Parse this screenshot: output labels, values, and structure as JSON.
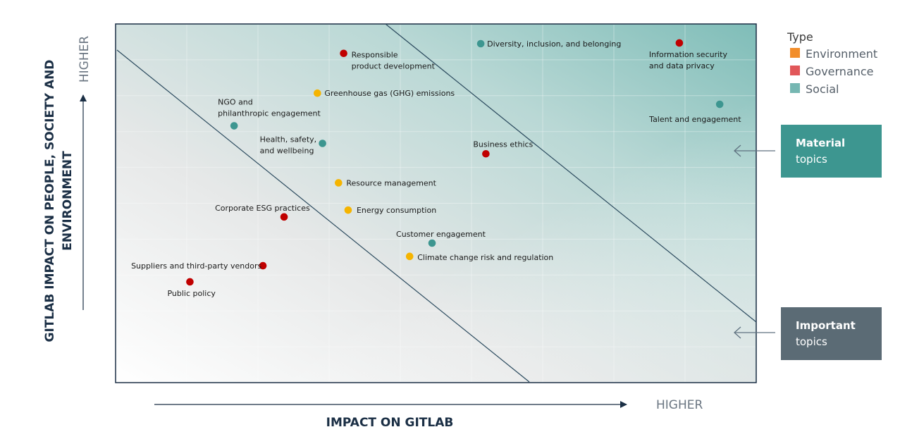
{
  "colors": {
    "environment": "#f5b400",
    "governance": "#c00000",
    "social": "#3d9690",
    "legend_environment": "#f28e2b",
    "legend_governance": "#e15759",
    "legend_social": "#76b7b2",
    "material_box": "#3d9690",
    "important_box": "#5b6b75",
    "axis_text": "#1b2f45"
  },
  "axes": {
    "x_title": "IMPACT ON GITLAB",
    "x_higher": "HIGHER",
    "y_title_line1": "GITLAB IMPACT ON PEOPLE, SOCIETY AND",
    "y_title_line2": "ENVIRONMENT",
    "y_higher": "HIGHER"
  },
  "legend": {
    "title": "Type",
    "items": [
      {
        "label": "Environment",
        "color_key": "legend_environment"
      },
      {
        "label": "Governance",
        "color_key": "legend_governance"
      },
      {
        "label": "Social",
        "color_key": "legend_social"
      }
    ]
  },
  "boxes": {
    "material": {
      "line1": "Material",
      "line2": "topics"
    },
    "important": {
      "line1": "Important",
      "line2": "topics"
    }
  },
  "chart_data": {
    "type": "scatter",
    "xlabel": "IMPACT ON GITLAB",
    "ylabel": "GITLAB IMPACT ON PEOPLE, SOCIETY AND ENVIRONMENT",
    "xlim": [
      0,
      100
    ],
    "ylim": [
      0,
      100
    ],
    "grid": true,
    "legend_position": "right",
    "series": [
      {
        "name": "Environment",
        "color_key": "environment",
        "points": [
          {
            "label": [
              "Greenhouse gas  (GHG) emissions"
            ],
            "x": 31.5,
            "y": 80.7
          },
          {
            "label": [
              "Resource management"
            ],
            "x": 34.8,
            "y": 55.7
          },
          {
            "label": [
              "Energy consumption"
            ],
            "x": 36.3,
            "y": 48.1
          },
          {
            "label": [
              "Climate change risk and regulation"
            ],
            "x": 45.9,
            "y": 35.2
          }
        ]
      },
      {
        "name": "Governance",
        "color_key": "governance",
        "points": [
          {
            "label": [
              "Responsible",
              "product development"
            ],
            "x": 35.6,
            "y": 91.8
          },
          {
            "label": [
              "Information security",
              "and data privacy"
            ],
            "x": 88.0,
            "y": 94.7
          },
          {
            "label": [
              "Business ethics"
            ],
            "x": 57.8,
            "y": 63.8
          },
          {
            "label": [
              "Corporate ESG practices"
            ],
            "x": 26.3,
            "y": 46.2
          },
          {
            "label": [
              "Suppliers and third-party vendors"
            ],
            "x": 23.0,
            "y": 32.6
          },
          {
            "label": [
              "Public policy"
            ],
            "x": 11.6,
            "y": 28.1
          }
        ]
      },
      {
        "name": "Social",
        "color_key": "social",
        "points": [
          {
            "label": [
              "Diversity, inclusion, and belonging"
            ],
            "x": 57.0,
            "y": 94.5
          },
          {
            "label": [
              "Talent and engagement"
            ],
            "x": 94.3,
            "y": 77.6
          },
          {
            "label": [
              "NGO and",
              "philanthropic engagement"
            ],
            "x": 18.5,
            "y": 71.6
          },
          {
            "label": [
              "Health, safety,",
              "and wellbeing"
            ],
            "x": 32.3,
            "y": 66.7
          },
          {
            "label": [
              "Customer engagement"
            ],
            "x": 49.4,
            "y": 38.9
          }
        ]
      }
    ]
  }
}
